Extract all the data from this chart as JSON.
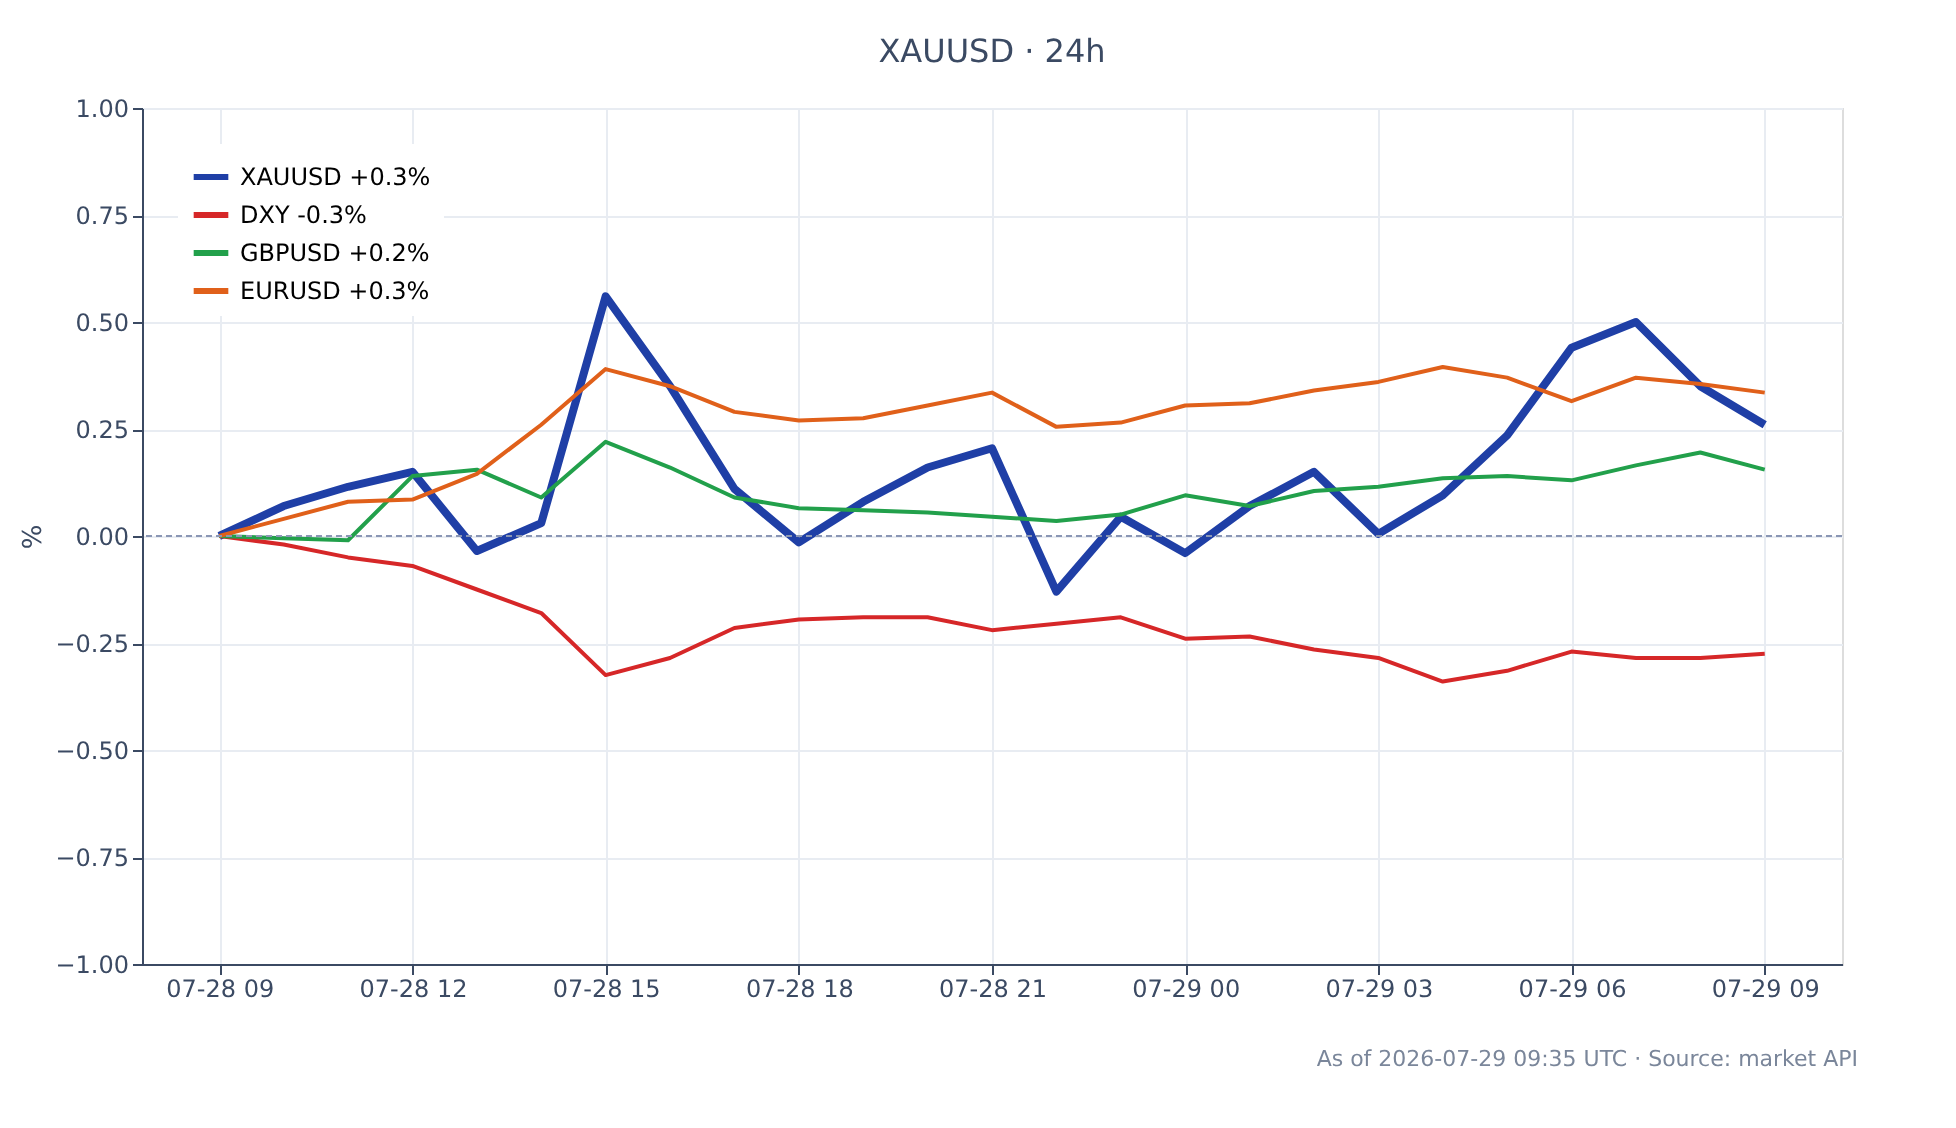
{
  "chart_data": {
    "type": "line",
    "title": "XAUUSD · 24h",
    "ylabel": "%",
    "x": [
      "2026-07-28T09:00",
      "2026-07-28T10:00",
      "2026-07-28T11:00",
      "2026-07-28T12:00",
      "2026-07-28T13:00",
      "2026-07-28T14:00",
      "2026-07-28T15:00",
      "2026-07-28T16:00",
      "2026-07-28T17:00",
      "2026-07-28T18:00",
      "2026-07-28T19:00",
      "2026-07-28T20:00",
      "2026-07-28T21:00",
      "2026-07-28T22:00",
      "2026-07-28T23:00",
      "2026-07-29T00:00",
      "2026-07-29T01:00",
      "2026-07-29T02:00",
      "2026-07-29T03:00",
      "2026-07-29T04:00",
      "2026-07-29T05:00",
      "2026-07-29T06:00",
      "2026-07-29T07:00",
      "2026-07-29T08:00",
      "2026-07-29T09:00"
    ],
    "series": [
      {
        "name": "XAUUSD +0.3%",
        "color": "#1f3fa6",
        "values": [
          0,
          0.07,
          0.115,
          0.15,
          -0.035,
          0.03,
          0.56,
          0.35,
          0.11,
          -0.015,
          0.08,
          0.16,
          0.205,
          -0.13,
          0.045,
          -0.04,
          0.07,
          0.15,
          0.005,
          0.095,
          0.235,
          0.44,
          0.5,
          0.35,
          0.26
        ]
      },
      {
        "name": "DXY -0.3%",
        "color": "#d62728",
        "values": [
          0,
          -0.02,
          -0.05,
          -0.07,
          -0.125,
          -0.18,
          -0.325,
          -0.285,
          -0.215,
          -0.195,
          -0.19,
          -0.19,
          -0.22,
          -0.205,
          -0.19,
          -0.24,
          -0.235,
          -0.265,
          -0.285,
          -0.34,
          -0.315,
          -0.27,
          -0.285,
          -0.285,
          -0.275
        ]
      },
      {
        "name": "GBPUSD +0.2%",
        "color": "#22a04b",
        "values": [
          0,
          -0.005,
          -0.01,
          0.14,
          0.155,
          0.09,
          0.22,
          0.16,
          0.09,
          0.065,
          0.06,
          0.055,
          0.045,
          0.035,
          0.05,
          0.095,
          0.07,
          0.105,
          0.115,
          0.135,
          0.14,
          0.13,
          0.165,
          0.195,
          0.155
        ]
      },
      {
        "name": "EURUSD +0.3%",
        "color": "#e0601a",
        "values": [
          0,
          0.04,
          0.08,
          0.085,
          0.145,
          0.26,
          0.39,
          0.35,
          0.29,
          0.27,
          0.275,
          0.305,
          0.335,
          0.255,
          0.265,
          0.305,
          0.31,
          0.34,
          0.36,
          0.395,
          0.37,
          0.315,
          0.37,
          0.355,
          0.335
        ]
      }
    ],
    "xlim": [
      "2026-07-28T07:48",
      "2026-07-29T10:12"
    ],
    "xticks": [
      {
        "value": "2026-07-28T09:00",
        "label": "07-28 09"
      },
      {
        "value": "2026-07-28T12:00",
        "label": "07-28 12"
      },
      {
        "value": "2026-07-28T15:00",
        "label": "07-28 15"
      },
      {
        "value": "2026-07-28T18:00",
        "label": "07-28 18"
      },
      {
        "value": "2026-07-28T21:00",
        "label": "07-28 21"
      },
      {
        "value": "2026-07-29T00:00",
        "label": "07-29 00"
      },
      {
        "value": "2026-07-29T03:00",
        "label": "07-29 03"
      },
      {
        "value": "2026-07-29T06:00",
        "label": "07-29 06"
      },
      {
        "value": "2026-07-29T09:00",
        "label": "07-29 09"
      }
    ],
    "ylim": [
      -1,
      1
    ],
    "yticks": [
      {
        "value": -1,
        "label": "−1.00"
      },
      {
        "value": -0.75,
        "label": "−0.75"
      },
      {
        "value": -0.5,
        "label": "−0.50"
      },
      {
        "value": -0.25,
        "label": "−0.25"
      },
      {
        "value": 0,
        "label": "0.00"
      },
      {
        "value": 0.25,
        "label": "0.25"
      },
      {
        "value": 0.5,
        "label": "0.50"
      },
      {
        "value": 0.75,
        "label": "0.75"
      },
      {
        "value": 1,
        "label": "1.00"
      }
    ],
    "ref_lines": [
      {
        "axis": "y",
        "value": 0,
        "color": "#8a96b4",
        "line_style": "dashed"
      }
    ],
    "grid": true,
    "legend": "top left",
    "line_style": "solid",
    "marker": "none",
    "annotations": [
      "As of 2026-07-29 09:35 UTC · Source: market API"
    ]
  }
}
